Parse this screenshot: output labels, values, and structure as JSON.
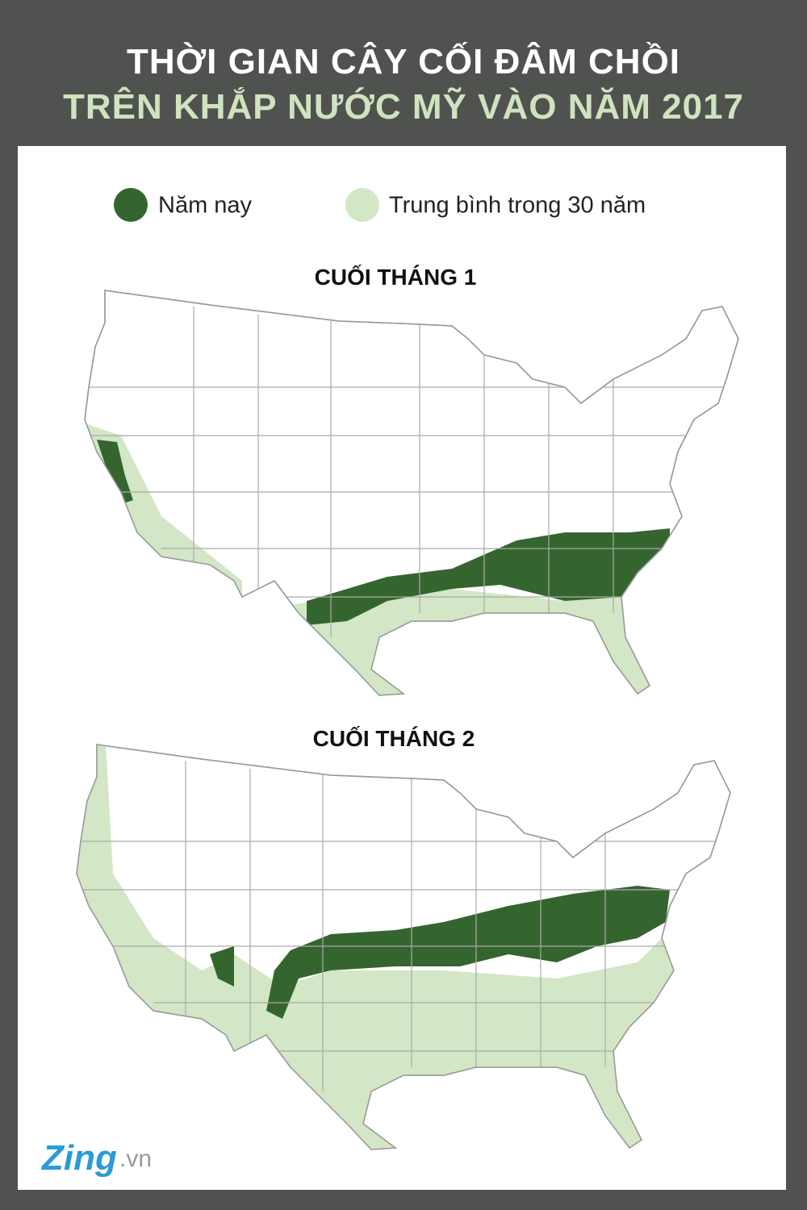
{
  "header": {
    "title_line1": "THỜI GIAN CÂY CỐI ĐÂM CHỒI",
    "title_line2": "TRÊN KHẮP NƯỚC MỸ VÀO NĂM 2017"
  },
  "legend": {
    "items": [
      {
        "label": "Năm nay",
        "color": "#35652f"
      },
      {
        "label": "Trung bình trong 30 năm",
        "color": "#d3e6c6"
      }
    ]
  },
  "maps": [
    {
      "title": "CUỐI THÁNG 1"
    },
    {
      "title": "CUỐI THÁNG 2"
    }
  ],
  "footer": {
    "logo": "Zing",
    "domain": ".vn"
  }
}
